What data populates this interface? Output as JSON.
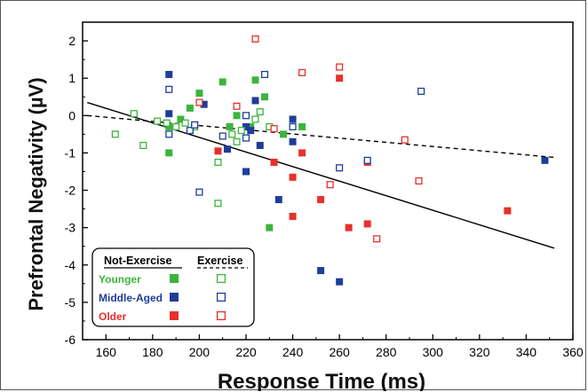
{
  "chart_data": {
    "type": "scatter",
    "title": "",
    "xlabel": "Response Time (ms)",
    "ylabel": "Prefrontal Negativity (µV)",
    "xlim": [
      150,
      360
    ],
    "ylim": [
      -6,
      2.5
    ],
    "xticks": [
      160,
      180,
      200,
      220,
      240,
      260,
      280,
      300,
      320,
      340,
      360
    ],
    "yticks": [
      2,
      1,
      0,
      -1,
      -2,
      -3,
      -4,
      -5,
      -6
    ],
    "grid": false,
    "legend": {
      "placement": "bottom-left",
      "col_headers": [
        "Not-Exercise",
        "Exercise"
      ],
      "rows": [
        "Younger",
        "Middle-Aged",
        "Older"
      ]
    },
    "colors": {
      "younger": "#3cb43c",
      "middle": "#1f3d99",
      "older": "#e8302a"
    },
    "series": [
      {
        "name": "Younger",
        "group": "younger",
        "exercise": false,
        "x": [
          187,
          192,
          196,
          200,
          210,
          213,
          216,
          222,
          224,
          228,
          230,
          236,
          244,
          187
        ],
        "y": [
          -1.0,
          -0.1,
          0.2,
          0.6,
          0.9,
          -0.3,
          0.0,
          -0.3,
          0.95,
          0.5,
          -3.0,
          -0.5,
          -0.3,
          -0.3
        ]
      },
      {
        "name": "Middle-Aged",
        "group": "middle",
        "exercise": false,
        "x": [
          187,
          187,
          202,
          212,
          220,
          222,
          224,
          226,
          234,
          240,
          240,
          252,
          260,
          348,
          220
        ],
        "y": [
          1.1,
          0.05,
          0.3,
          -0.9,
          -1.5,
          -0.4,
          0.4,
          -0.8,
          -2.25,
          -0.1,
          -0.7,
          -4.15,
          -4.45,
          -1.2,
          -0.3
        ]
      },
      {
        "name": "Older",
        "group": "older",
        "exercise": false,
        "x": [
          208,
          232,
          240,
          240,
          244,
          252,
          260,
          264,
          272,
          272,
          332
        ],
        "y": [
          -0.95,
          -1.25,
          -1.65,
          -2.7,
          -1.0,
          -2.25,
          1.0,
          -3.0,
          -1.25,
          -2.9,
          -2.55
        ]
      },
      {
        "name": "Younger",
        "group": "younger",
        "exercise": true,
        "x": [
          164,
          172,
          176,
          182,
          186,
          190,
          194,
          198,
          208,
          208,
          214,
          216,
          218,
          224,
          226,
          230
        ],
        "y": [
          -0.5,
          0.05,
          -0.8,
          -0.15,
          -0.2,
          -0.3,
          -0.2,
          -0.3,
          -1.25,
          -2.35,
          -0.5,
          -0.7,
          -0.4,
          -0.1,
          0.1,
          -0.3
        ]
      },
      {
        "name": "Middle-Aged",
        "group": "middle",
        "exercise": true,
        "x": [
          187,
          187,
          196,
          200,
          210,
          220,
          220,
          228,
          240,
          260,
          272,
          295,
          198
        ],
        "y": [
          0.7,
          -0.5,
          -0.4,
          -2.05,
          -0.55,
          0.0,
          -0.6,
          1.1,
          -0.3,
          -1.4,
          -1.2,
          0.65,
          -0.25
        ]
      },
      {
        "name": "Older",
        "group": "older",
        "exercise": true,
        "x": [
          200,
          216,
          224,
          232,
          244,
          256,
          260,
          276,
          288,
          294
        ],
        "y": [
          0.35,
          0.25,
          2.05,
          -0.35,
          1.15,
          -1.85,
          1.3,
          -3.3,
          -0.65,
          -1.75
        ]
      }
    ],
    "fit_lines": [
      {
        "name": "Not-Exercise",
        "style": "solid",
        "x": [
          152,
          352
        ],
        "y": [
          0.35,
          -3.55
        ]
      },
      {
        "name": "Exercise",
        "style": "dashed",
        "x": [
          152,
          352
        ],
        "y": [
          0.0,
          -1.12
        ]
      }
    ]
  }
}
